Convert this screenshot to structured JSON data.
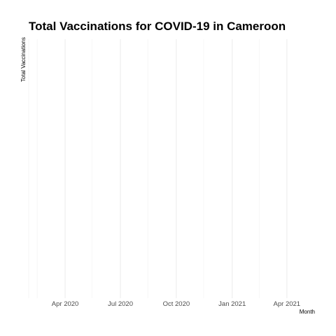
{
  "chart_data": {
    "type": "line",
    "title": "Total Vaccinations for COVID-19 in Cameroon",
    "xlabel": "Month",
    "ylabel": "Total Vaccinations",
    "x_type": "date",
    "xlim": [
      "2020-02-01",
      "2021-05-15"
    ],
    "x_ticks": [
      {
        "date": "2020-04-01",
        "label": "Apr 2020"
      },
      {
        "date": "2020-07-01",
        "label": "Jul 2020"
      },
      {
        "date": "2020-10-01",
        "label": "Oct 2020"
      },
      {
        "date": "2021-01-01",
        "label": "Jan 2021"
      },
      {
        "date": "2021-04-01",
        "label": "Apr 2021"
      }
    ],
    "x_minor_ticks": [
      "2020-02-15",
      "2020-05-15",
      "2020-08-15",
      "2020-11-15",
      "2021-02-15"
    ],
    "series": [],
    "grid": true,
    "legend": "none"
  }
}
